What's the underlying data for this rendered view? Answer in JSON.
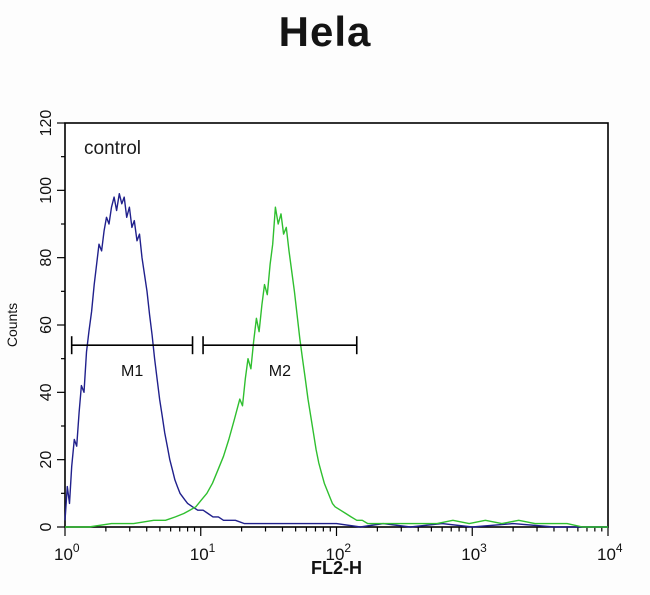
{
  "header": {
    "title": "Hela"
  },
  "chart_data": {
    "type": "line",
    "subtype": "flow-cytometry-histogram",
    "title": "Hela",
    "annotation": "control",
    "xlabel": "FL2-H",
    "ylabel": "Counts",
    "x_scale": "log10",
    "xlim": [
      1,
      10000
    ],
    "ylim": [
      0,
      120
    ],
    "x_ticks_exponents": [
      0,
      1,
      2,
      3,
      4
    ],
    "y_ticks": [
      0,
      20,
      40,
      60,
      80,
      100,
      120
    ],
    "grid": false,
    "legend": "none",
    "series": [
      {
        "name": "blue-histogram",
        "color": "#20208c",
        "points": [
          [
            1.0,
            2
          ],
          [
            1.04,
            12
          ],
          [
            1.08,
            7
          ],
          [
            1.12,
            18
          ],
          [
            1.17,
            26
          ],
          [
            1.22,
            24
          ],
          [
            1.27,
            34
          ],
          [
            1.32,
            42
          ],
          [
            1.38,
            40
          ],
          [
            1.44,
            52
          ],
          [
            1.5,
            58
          ],
          [
            1.57,
            64
          ],
          [
            1.64,
            72
          ],
          [
            1.71,
            78
          ],
          [
            1.78,
            84
          ],
          [
            1.86,
            82
          ],
          [
            1.94,
            88
          ],
          [
            2.02,
            92
          ],
          [
            2.11,
            90
          ],
          [
            2.2,
            95
          ],
          [
            2.3,
            98
          ],
          [
            2.4,
            94
          ],
          [
            2.51,
            99
          ],
          [
            2.62,
            96
          ],
          [
            2.73,
            98
          ],
          [
            2.85,
            92
          ],
          [
            2.98,
            95
          ],
          [
            3.11,
            89
          ],
          [
            3.24,
            91
          ],
          [
            3.39,
            85
          ],
          [
            3.54,
            87
          ],
          [
            3.69,
            80
          ],
          [
            3.85,
            75
          ],
          [
            4.02,
            70
          ],
          [
            4.2,
            63
          ],
          [
            4.38,
            57
          ],
          [
            4.57,
            50
          ],
          [
            4.77,
            44
          ],
          [
            4.98,
            38
          ],
          [
            5.2,
            33
          ],
          [
            5.43,
            28
          ],
          [
            5.67,
            24
          ],
          [
            5.92,
            20
          ],
          [
            6.18,
            17
          ],
          [
            6.45,
            14
          ],
          [
            6.73,
            12
          ],
          [
            7.03,
            10
          ],
          [
            7.34,
            9
          ],
          [
            7.66,
            8
          ],
          [
            8.0,
            7
          ],
          [
            8.7,
            6
          ],
          [
            9.5,
            5
          ],
          [
            10.4,
            5
          ],
          [
            11.3,
            4
          ],
          [
            12.3,
            3
          ],
          [
            13.5,
            3
          ],
          [
            14.7,
            2
          ],
          [
            16,
            2
          ],
          [
            18,
            2
          ],
          [
            21,
            1
          ],
          [
            25,
            1
          ],
          [
            30,
            1
          ],
          [
            38,
            1
          ],
          [
            50,
            1
          ],
          [
            70,
            1
          ],
          [
            100,
            1
          ],
          [
            150,
            0
          ],
          [
            220,
            1
          ],
          [
            350,
            0
          ],
          [
            600,
            1
          ],
          [
            1000,
            0
          ],
          [
            2000,
            1
          ],
          [
            4000,
            0
          ],
          [
            10000,
            0
          ]
        ]
      },
      {
        "name": "green-histogram",
        "color": "#2fbf2f",
        "points": [
          [
            1.0,
            0
          ],
          [
            1.5,
            0
          ],
          [
            2.2,
            1
          ],
          [
            3.2,
            1
          ],
          [
            4.5,
            2
          ],
          [
            5.5,
            2
          ],
          [
            6.5,
            3
          ],
          [
            7.5,
            4
          ],
          [
            8.3,
            5
          ],
          [
            9.2,
            6
          ],
          [
            10.1,
            8
          ],
          [
            11.1,
            10
          ],
          [
            12.2,
            13
          ],
          [
            13.4,
            17
          ],
          [
            14.7,
            21
          ],
          [
            16.1,
            26
          ],
          [
            17.7,
            32
          ],
          [
            19.4,
            38
          ],
          [
            20.3,
            36
          ],
          [
            21.3,
            44
          ],
          [
            22.3,
            50
          ],
          [
            23.4,
            47
          ],
          [
            24.5,
            55
          ],
          [
            25.7,
            62
          ],
          [
            26.9,
            58
          ],
          [
            28.2,
            66
          ],
          [
            29.5,
            72
          ],
          [
            30.9,
            69
          ],
          [
            32.4,
            78
          ],
          [
            33.9,
            84
          ],
          [
            35.5,
            95
          ],
          [
            37.2,
            90
          ],
          [
            39,
            93
          ],
          [
            40.8,
            87
          ],
          [
            42.7,
            89
          ],
          [
            44.7,
            82
          ],
          [
            46.8,
            76
          ],
          [
            49,
            70
          ],
          [
            51.3,
            63
          ],
          [
            53.7,
            56
          ],
          [
            56.2,
            50
          ],
          [
            58.9,
            44
          ],
          [
            61.7,
            38
          ],
          [
            64.6,
            33
          ],
          [
            67.6,
            28
          ],
          [
            70.8,
            23
          ],
          [
            74.1,
            19
          ],
          [
            77.6,
            16
          ],
          [
            81.3,
            13
          ],
          [
            85.1,
            11
          ],
          [
            89.1,
            9
          ],
          [
            93.3,
            7
          ],
          [
            97.7,
            6
          ],
          [
            107,
            5
          ],
          [
            117,
            4
          ],
          [
            128,
            3
          ],
          [
            141,
            2
          ],
          [
            155,
            2
          ],
          [
            170,
            1
          ],
          [
            200,
            1
          ],
          [
            250,
            1
          ],
          [
            320,
            1
          ],
          [
            420,
            1
          ],
          [
            550,
            1
          ],
          [
            720,
            2
          ],
          [
            950,
            1
          ],
          [
            1250,
            2
          ],
          [
            1650,
            1
          ],
          [
            2200,
            2
          ],
          [
            2900,
            1
          ],
          [
            3800,
            1
          ],
          [
            5000,
            1
          ],
          [
            6500,
            0
          ],
          [
            10000,
            0
          ]
        ]
      }
    ],
    "markers": [
      {
        "label": "M1",
        "x_from": 1.12,
        "x_to": 8.7,
        "y": 54
      },
      {
        "label": "M2",
        "x_from": 10.4,
        "x_to": 141,
        "y": 54
      }
    ]
  },
  "colors": {
    "axis": "#000000",
    "blue_series": "#20208c",
    "green_series": "#2fbf2f",
    "background": "#fdfdfd"
  }
}
